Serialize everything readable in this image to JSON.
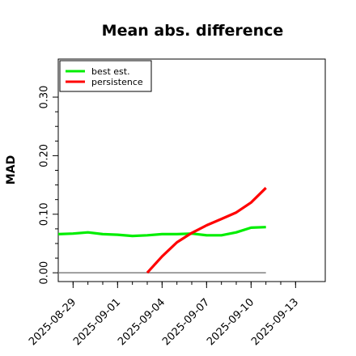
{
  "chart_data": {
    "type": "line",
    "title": "Mean abs. difference",
    "xlabel": "",
    "ylabel": "MAD",
    "x_ticks": [
      "2025-08-29",
      "2025-09-01",
      "2025-09-04",
      "2025-09-07",
      "2025-09-10",
      "2025-09-13"
    ],
    "y_ticks": [
      "0.00",
      "0.10",
      "0.20",
      "0.30"
    ],
    "ylim": [
      -0.015,
      0.365
    ],
    "xlim": [
      "2025-08-28",
      "2025-09-15"
    ],
    "grid": false,
    "legend_position": "top-left",
    "reference_line": {
      "y": 0,
      "x_start": "2025-08-28",
      "x_end": "2025-09-11",
      "color": "#808080"
    },
    "series": [
      {
        "name": "best est.",
        "color": "#00ee00",
        "x": [
          "2025-08-28",
          "2025-08-29",
          "2025-08-30",
          "2025-08-31",
          "2025-09-01",
          "2025-09-02",
          "2025-09-03",
          "2025-09-04",
          "2025-09-05",
          "2025-09-06",
          "2025-09-07",
          "2025-09-08",
          "2025-09-09",
          "2025-09-10",
          "2025-09-11"
        ],
        "y": [
          0.066,
          0.067,
          0.069,
          0.066,
          0.065,
          0.063,
          0.064,
          0.066,
          0.066,
          0.067,
          0.064,
          0.064,
          0.069,
          0.077,
          0.078
        ]
      },
      {
        "name": "persistence",
        "color": "#ff0000",
        "x": [
          "2025-09-03",
          "2025-09-04",
          "2025-09-05",
          "2025-09-06",
          "2025-09-07",
          "2025-09-08",
          "2025-09-09",
          "2025-09-10",
          "2025-09-11"
        ],
        "y": [
          0.0,
          0.028,
          0.052,
          0.068,
          0.081,
          0.092,
          0.103,
          0.12,
          0.145
        ]
      }
    ]
  }
}
